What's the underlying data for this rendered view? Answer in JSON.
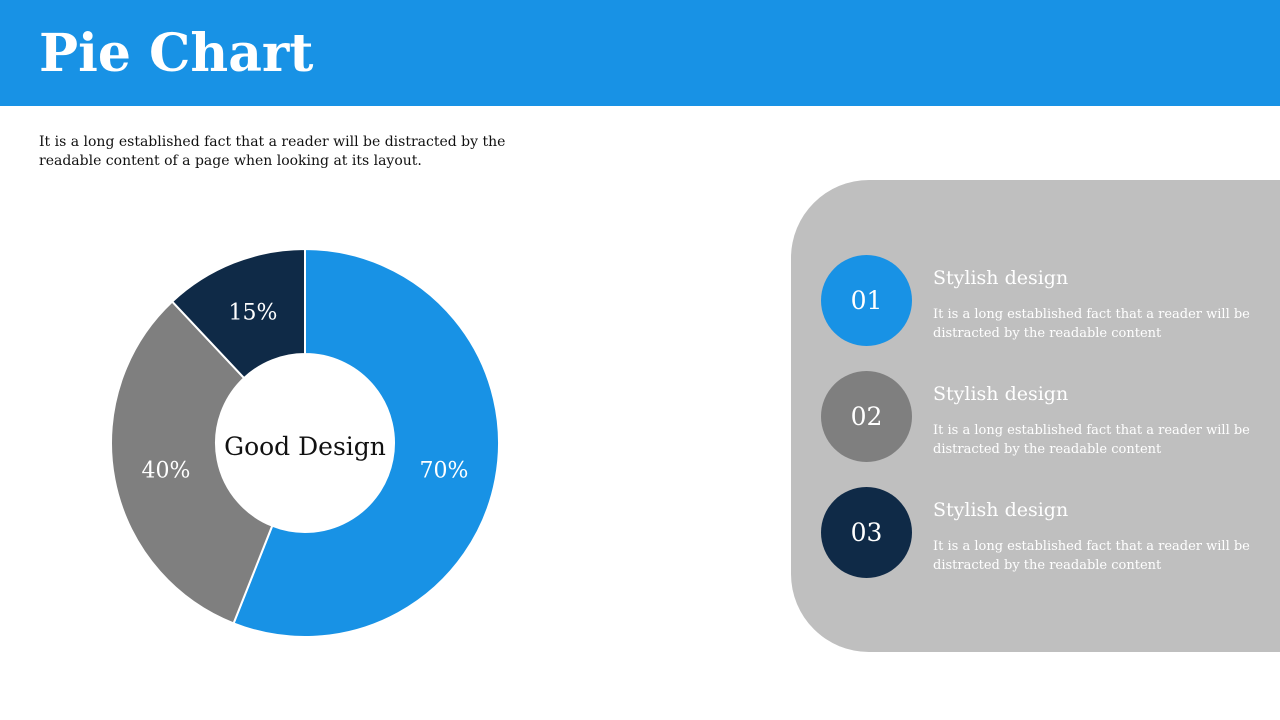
{
  "header": {
    "title": "Pie Chart"
  },
  "intro": "It is a long established fact that a reader will be distracted by the readable content of a page when looking at its layout.",
  "chart_data": {
    "type": "pie",
    "center_label": "Good Design",
    "slices": [
      {
        "label": "70%",
        "value": 70,
        "color": "#1892e5"
      },
      {
        "label": "40%",
        "value": 40,
        "color": "#7f7f7f"
      },
      {
        "label": "15%",
        "value": 15,
        "color": "#0f2a47"
      }
    ]
  },
  "panel": {
    "background": "#bfbfbf",
    "items": [
      {
        "number": "01",
        "title": "Stylish design",
        "text": "It is a long established fact that a reader will be distracted by the readable content",
        "color": "#1892e5"
      },
      {
        "number": "02",
        "title": "Stylish design",
        "text": "It is a long established fact that a reader will be distracted by the readable content",
        "color": "#7f7f7f"
      },
      {
        "number": "03",
        "title": "Stylish design",
        "text": "It is a long established fact that a reader will be distracted by the readable content",
        "color": "#0f2a47"
      }
    ]
  }
}
